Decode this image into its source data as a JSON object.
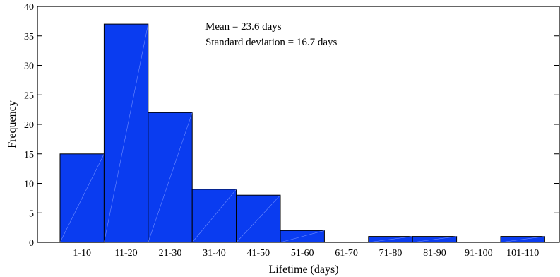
{
  "chart_data": {
    "type": "bar",
    "categories": [
      "1-10",
      "11-20",
      "21-30",
      "31-40",
      "41-50",
      "51-60",
      "61-70",
      "71-80",
      "81-90",
      "91-100",
      "101-110"
    ],
    "values": [
      15,
      37,
      22,
      9,
      8,
      2,
      0,
      1,
      1,
      0,
      1
    ],
    "xlabel": "Lifetime (days)",
    "ylabel": "Frequency",
    "ylim": [
      0,
      40
    ],
    "yticks": [
      0,
      5,
      10,
      15,
      20,
      25,
      30,
      35,
      40
    ],
    "grid": false,
    "legend": "none",
    "bar_color": "#0a3cf0",
    "annotations": [
      "Mean = 23.6 days",
      "Standard deviation = 16.7 days"
    ]
  }
}
